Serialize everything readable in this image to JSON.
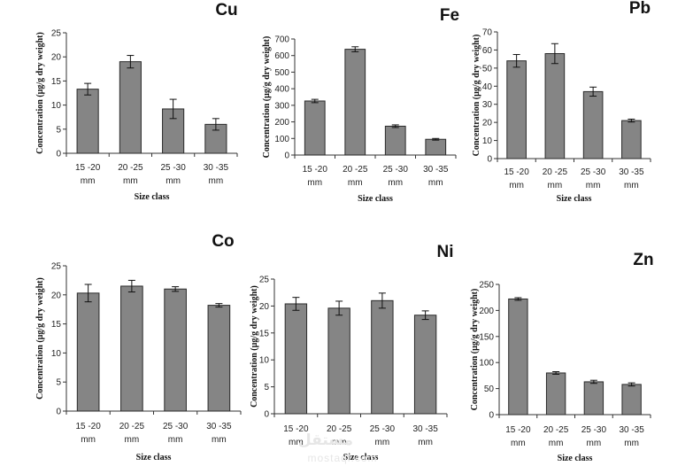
{
  "chart_data": [
    {
      "type": "bar",
      "title": "Cu",
      "ylabel": "Concentration (µg/g dry weight)",
      "xlabel": "Size class",
      "categories": [
        [
          "15 -20",
          "mm"
        ],
        [
          "20 -25",
          "mm"
        ],
        [
          "25 -30",
          "mm"
        ],
        [
          "30 -35",
          "mm"
        ]
      ],
      "values": [
        13.3,
        19.0,
        9.2,
        6.0
      ],
      "errors": [
        1.2,
        1.3,
        2.0,
        1.2
      ],
      "ylim": [
        0,
        25
      ],
      "yticks": [
        "0",
        "5",
        "10",
        "15",
        "20",
        "25"
      ],
      "bar_color": "#858585"
    },
    {
      "type": "bar",
      "title": "Fe",
      "ylabel": "Concentration (µg/g dry weight)",
      "xlabel": "Size class",
      "categories": [
        [
          "15 -20",
          "mm"
        ],
        [
          "20 -25",
          "mm"
        ],
        [
          "25 -30",
          "mm"
        ],
        [
          "30 -35",
          "mm"
        ]
      ],
      "values": [
        326,
        638,
        174,
        95
      ],
      "errors": [
        10,
        15,
        8,
        5
      ],
      "ylim": [
        0,
        700
      ],
      "yticks": [
        "0",
        "100",
        "200",
        "300",
        "400",
        "500",
        "600",
        "700"
      ],
      "bar_color": "#858585"
    },
    {
      "type": "bar",
      "title": "Pb",
      "ylabel": "Concentration (µg/g dry weight)",
      "xlabel": "Size class",
      "categories": [
        [
          "15 -20",
          "mm"
        ],
        [
          "20 -25",
          "mm"
        ],
        [
          "25 -30",
          "mm"
        ],
        [
          "30 -35",
          "mm"
        ]
      ],
      "values": [
        54,
        58,
        37,
        21
      ],
      "errors": [
        3.5,
        5.5,
        2.5,
        0.8
      ],
      "ylim": [
        0,
        70
      ],
      "yticks": [
        "0",
        "10",
        "20",
        "30",
        "40",
        "50",
        "60",
        "70"
      ],
      "bar_color": "#858585"
    },
    {
      "type": "bar",
      "title": "Co",
      "ylabel": "Concentration (µg/g dry weight)",
      "xlabel": "Size class",
      "categories": [
        [
          "15 -20",
          "mm"
        ],
        [
          "20 -25",
          "mm"
        ],
        [
          "25 -30",
          "mm"
        ],
        [
          "30 -35",
          "mm"
        ]
      ],
      "values": [
        20.3,
        21.5,
        21.0,
        18.2
      ],
      "errors": [
        1.5,
        1.0,
        0.4,
        0.3
      ],
      "ylim": [
        0,
        25
      ],
      "yticks": [
        "0",
        "5",
        "10",
        "15",
        "20",
        "25"
      ],
      "bar_color": "#858585"
    },
    {
      "type": "bar",
      "title": "Ni",
      "ylabel": "Concentration (µg/g dry weight)",
      "xlabel": "Size class",
      "categories": [
        [
          "15 -20",
          "mm"
        ],
        [
          "20 -25",
          "mm"
        ],
        [
          "25 -30",
          "mm"
        ],
        [
          "30 -35",
          "mm"
        ]
      ],
      "values": [
        20.4,
        19.6,
        21.0,
        18.3
      ],
      "errors": [
        1.2,
        1.3,
        1.4,
        0.8
      ],
      "ylim": [
        0,
        25
      ],
      "yticks": [
        "0",
        "5",
        "10",
        "15",
        "20",
        "25"
      ],
      "bar_color": "#858585"
    },
    {
      "type": "bar",
      "title": "Zn",
      "ylabel": "Concentration (µg/g dry weight)",
      "xlabel": "Size class",
      "categories": [
        [
          "15 -20",
          "mm"
        ],
        [
          "20 -25",
          "mm"
        ],
        [
          "25 -30",
          "mm"
        ],
        [
          "30 -35",
          "mm"
        ]
      ],
      "values": [
        222,
        80,
        63,
        58
      ],
      "errors": [
        2.5,
        2.5,
        3,
        3
      ],
      "ylim": [
        0,
        250
      ],
      "yticks": [
        "0",
        "50",
        "100",
        "150",
        "200",
        "250"
      ],
      "bar_color": "#858585"
    }
  ],
  "watermark": {
    "logo_text": "مستقل",
    "site_text": "mostaql.com"
  }
}
